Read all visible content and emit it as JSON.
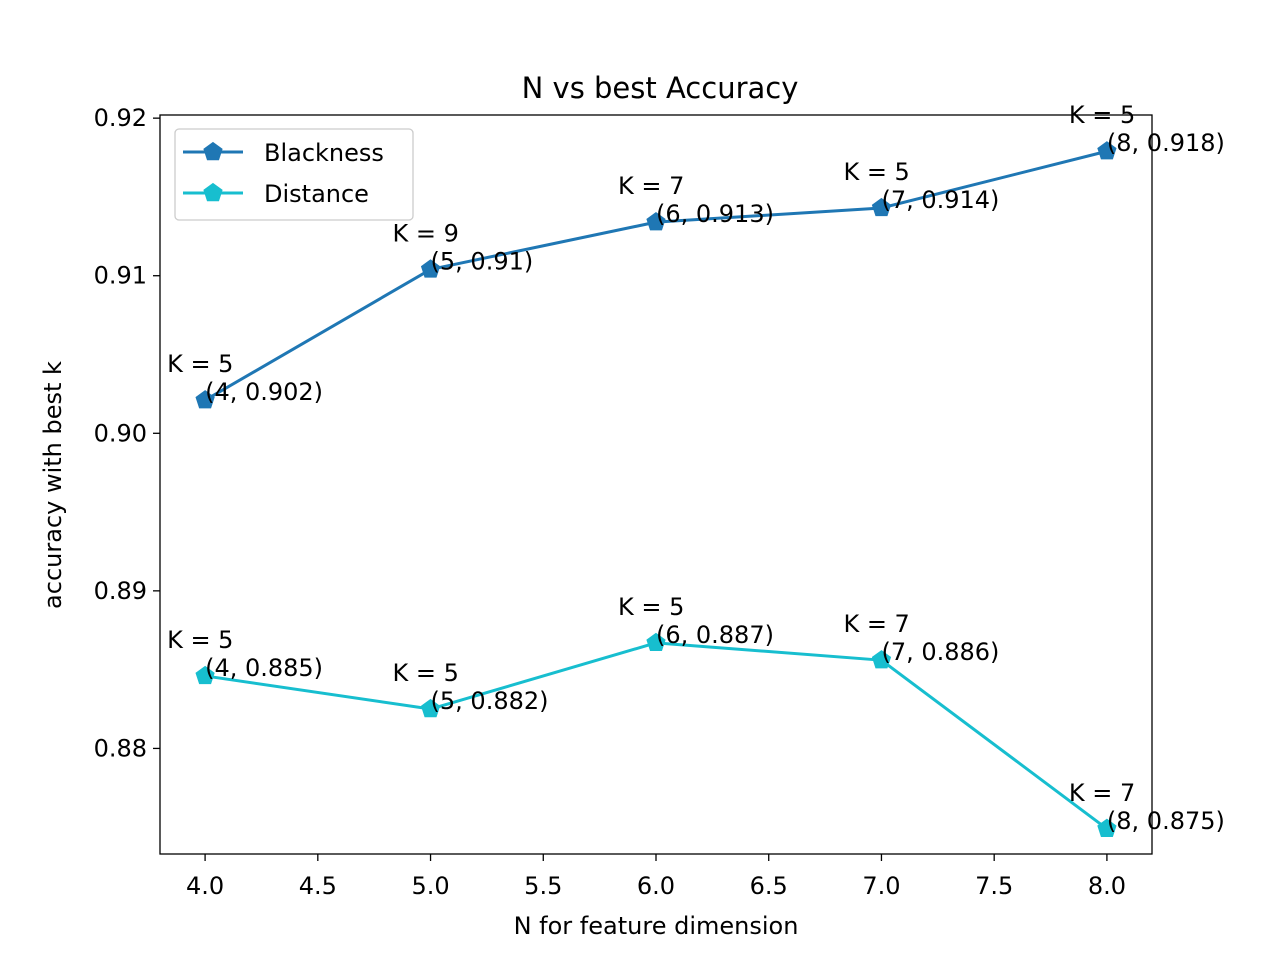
{
  "chart_data": {
    "type": "line",
    "title": "N vs best Accuracy",
    "xlabel": "N for feature dimension",
    "ylabel": "accuracy with best k",
    "xlim": [
      3.8,
      8.2
    ],
    "ylim": [
      0.8733,
      0.9202
    ],
    "x_ticks": [
      4.0,
      4.5,
      5.0,
      5.5,
      6.0,
      6.5,
      7.0,
      7.5,
      8.0
    ],
    "x_tick_labels": [
      "4.0",
      "4.5",
      "5.0",
      "5.5",
      "6.0",
      "6.5",
      "7.0",
      "7.5",
      "8.0"
    ],
    "y_ticks": [
      0.88,
      0.89,
      0.9,
      0.91,
      0.92
    ],
    "y_tick_labels": [
      "0.88",
      "0.89",
      "0.90",
      "0.91",
      "0.92"
    ],
    "grid": false,
    "legend_position": "upper-left",
    "series": [
      {
        "name": "Blackness",
        "color": "#1f77b4",
        "marker": "pentagon",
        "x": [
          4,
          5,
          6,
          7,
          8
        ],
        "y": [
          0.9021,
          0.9104,
          0.9134,
          0.9143,
          0.9179
        ],
        "point_labels": [
          "(4, 0.902)",
          "(5, 0.91)",
          "(6, 0.913)",
          "(7, 0.914)",
          "(8, 0.918)"
        ],
        "k_labels": [
          "K = 5",
          "K = 9",
          "K = 7",
          "K = 5",
          "K = 5"
        ]
      },
      {
        "name": "Distance",
        "color": "#17becf",
        "marker": "pentagon",
        "x": [
          4,
          5,
          6,
          7,
          8
        ],
        "y": [
          0.8846,
          0.8825,
          0.8867,
          0.8856,
          0.8749
        ],
        "point_labels": [
          "(4, 0.885)",
          "(5, 0.882)",
          "(6, 0.887)",
          "(7, 0.886)",
          "(8, 0.875)"
        ],
        "k_labels": [
          "K = 5",
          "K = 5",
          "K = 5",
          "K = 7",
          "K = 7"
        ]
      }
    ]
  }
}
